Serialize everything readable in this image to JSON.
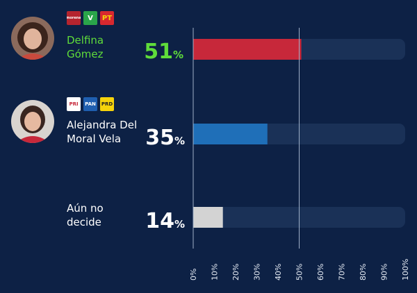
{
  "chart_data": {
    "type": "bar",
    "orientation": "horizontal",
    "categories": [
      "Delfina Gómez",
      "Alejandra Del Moral Vela",
      "Aún no decide"
    ],
    "values": [
      51,
      35,
      14
    ],
    "unit": "%",
    "xlim": [
      0,
      100
    ],
    "x_ticks": [
      "0%",
      "10%",
      "20%",
      "30%",
      "40%",
      "50%",
      "60%",
      "70%",
      "80%",
      "90%",
      "100%"
    ],
    "reference_line": 50,
    "bar_colors": [
      "#c7283a",
      "#1f6fb8",
      "#d3d3d3"
    ],
    "track_color": "#1a3157",
    "value_colors": [
      "#5fdc3a",
      "#ffffff",
      "#ffffff"
    ],
    "grid": false
  },
  "candidates": [
    {
      "name_line1": "Delfina",
      "name_line2": "Gómez",
      "name_color": "#5fdc3a",
      "value": "51",
      "unit": "%",
      "parties": [
        {
          "label": "morena",
          "bg": "#b5242e",
          "fg": "#ffffff",
          "icon": "morena-logo-icon"
        },
        {
          "label": "V",
          "bg": "#2aa54a",
          "fg": "#ffffff",
          "icon": "pvem-logo-icon"
        },
        {
          "label": "PT",
          "bg": "#d7282f",
          "fg": "#f5d20a",
          "icon": "pt-logo-icon"
        }
      ]
    },
    {
      "name_line1": "Alejandra Del",
      "name_line2": "Moral Vela",
      "name_color": "#ffffff",
      "value": "35",
      "unit": "%",
      "parties": [
        {
          "label": "PRI",
          "bg": "#ffffff",
          "fg": "#c7283a",
          "icon": "pri-logo-icon"
        },
        {
          "label": "PAN",
          "bg": "#1f5fb0",
          "fg": "#ffffff",
          "icon": "pan-logo-icon"
        },
        {
          "label": "PRD",
          "bg": "#f6d30b",
          "fg": "#222222",
          "icon": "prd-logo-icon"
        }
      ]
    },
    {
      "name_line1": "Aún no",
      "name_line2": "decide",
      "name_color": "#ffffff",
      "value": "14",
      "unit": "%",
      "parties": []
    }
  ]
}
